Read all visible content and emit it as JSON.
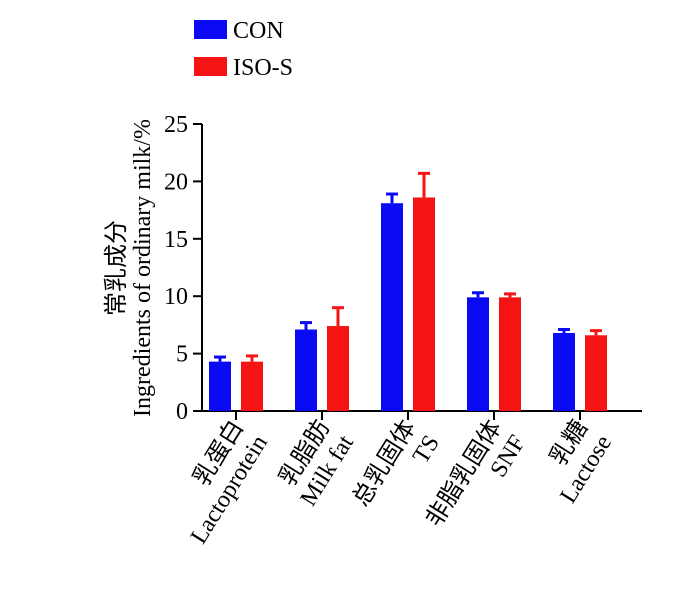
{
  "chart_data": {
    "type": "bar",
    "ylabel_line1": "常乳成分",
    "ylabel_line2": "Ingredients of ordinary milk/%",
    "ylim": [
      0,
      25
    ],
    "yticks": [
      0,
      5,
      10,
      15,
      20,
      25
    ],
    "legend_position": "top-left",
    "categories": [
      {
        "zh": "乳蛋白",
        "en": "Lactoprotein"
      },
      {
        "zh": "乳脂肪",
        "en": "Milk fat"
      },
      {
        "zh": "总乳固体",
        "en": "TS"
      },
      {
        "zh": "非脂乳固体",
        "en": "SNF"
      },
      {
        "zh": "乳糖",
        "en": "Lactose"
      }
    ],
    "series": [
      {
        "name": "CON",
        "color": "#0a0af5",
        "values": [
          4.3,
          7.1,
          18.1,
          9.9,
          6.8
        ],
        "errors": [
          0.4,
          0.6,
          0.8,
          0.4,
          0.3
        ]
      },
      {
        "name": "ISO-S",
        "color": "#f51414",
        "values": [
          4.3,
          7.4,
          18.6,
          9.9,
          6.6
        ],
        "errors": [
          0.5,
          1.6,
          2.1,
          0.3,
          0.4
        ]
      }
    ]
  }
}
